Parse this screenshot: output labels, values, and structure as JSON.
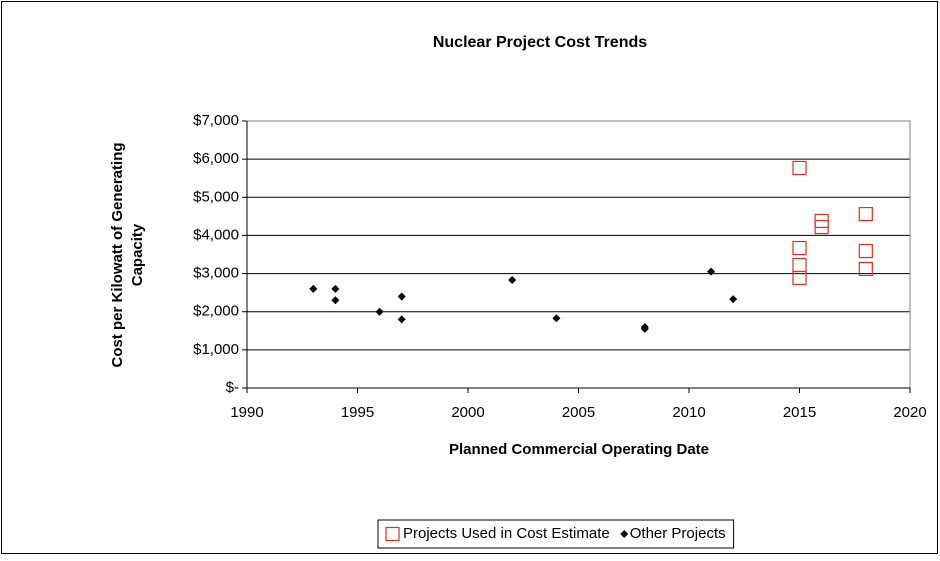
{
  "chart_data": {
    "type": "scatter",
    "title": "Nuclear Project Cost Trends",
    "xlabel": "Planned Commercial Operating Date",
    "ylabel": [
      "Cost per Kilowatt of Generating",
      "Capacity"
    ],
    "xlim": [
      1990,
      2020
    ],
    "xticks": [
      1990,
      1995,
      2000,
      2005,
      2010,
      2015,
      2020
    ],
    "ylim": [
      0,
      7000
    ],
    "yticks": [
      {
        "value": 0,
        "label": "$-"
      },
      {
        "value": 1000,
        "label": "$1,000"
      },
      {
        "value": 2000,
        "label": "$2,000"
      },
      {
        "value": 3000,
        "label": "$3,000"
      },
      {
        "value": 4000,
        "label": "$4,000"
      },
      {
        "value": 5000,
        "label": "$5,000"
      },
      {
        "value": 6000,
        "label": "$6,000"
      },
      {
        "value": 7000,
        "label": "$7,000"
      }
    ],
    "grid": true,
    "legend": "bottom",
    "series": [
      {
        "name": "Projects Used in Cost Estimate",
        "color": "#e0301e",
        "marker": "square",
        "x": [
          2015,
          2015,
          2015,
          2015,
          2016,
          2016,
          2018,
          2018,
          2018
        ],
        "values": [
          5770,
          3670,
          3225,
          2885,
          4380,
          4220,
          4560,
          3590,
          3120
        ]
      },
      {
        "name": "Other Projects",
        "color": "#000000",
        "marker": "diamond",
        "x": [
          1993,
          1994,
          1994,
          1996,
          1997,
          1997,
          2002,
          2004,
          2008,
          2008,
          2011,
          2012
        ],
        "values": [
          2600,
          2600,
          2300,
          2000,
          2400,
          1800,
          2830,
          1830,
          1600,
          1550,
          3050,
          2330
        ]
      }
    ]
  }
}
